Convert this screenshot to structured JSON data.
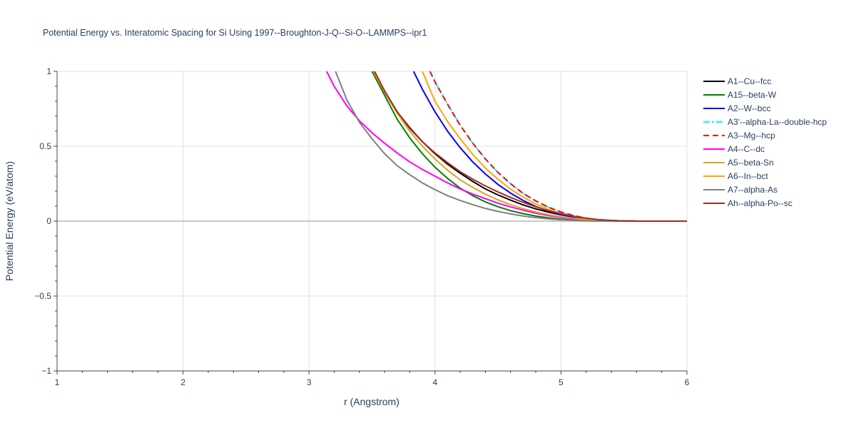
{
  "chart_data": {
    "type": "line",
    "title": "Potential Energy vs. Interatomic Spacing for Si Using 1997--Broughton-J-Q--Si-O--LAMMPS--ipr1",
    "xlabel": "r (Angstrom)",
    "ylabel": "Potential Energy (eV/atom)",
    "xlim": [
      1,
      6
    ],
    "ylim": [
      -1,
      1
    ],
    "xticks": [
      1,
      2,
      3,
      4,
      5,
      6
    ],
    "yticks": [
      -1,
      -0.5,
      0,
      0.5,
      1
    ],
    "xtick_labels": [
      "1",
      "2",
      "3",
      "4",
      "5",
      "6"
    ],
    "ytick_labels": [
      "−1",
      "−0.5",
      "0",
      "0.5",
      "1"
    ],
    "grid": true,
    "legend_position": "right",
    "series": [
      {
        "name": "A1--Cu--fcc",
        "color": "#000000",
        "dash": "solid",
        "x": [
          3.51,
          3.6,
          3.7,
          3.8,
          3.9,
          4.0,
          4.1,
          4.2,
          4.3,
          4.4,
          4.5,
          4.6,
          4.7,
          4.8,
          4.9,
          5.0,
          5.1,
          5.2,
          5.3,
          5.4,
          5.5,
          5.6,
          5.8,
          6.0
        ],
        "y": [
          1.0,
          0.86,
          0.73,
          0.62,
          0.53,
          0.45,
          0.38,
          0.32,
          0.265,
          0.215,
          0.175,
          0.14,
          0.108,
          0.082,
          0.06,
          0.042,
          0.028,
          0.017,
          0.009,
          0.004,
          0.0015,
          0.0003,
          0.0,
          0.0
        ]
      },
      {
        "name": "A15--beta-W",
        "color": "#008000",
        "dash": "solid",
        "x": [
          3.5,
          3.6,
          3.7,
          3.8,
          3.9,
          4.0,
          4.1,
          4.2,
          4.3,
          4.4,
          4.5,
          4.6,
          4.7,
          4.8,
          4.9,
          5.0,
          5.1,
          5.2,
          5.3,
          5.4,
          5.5,
          5.6,
          5.8,
          6.0
        ],
        "y": [
          1.0,
          0.84,
          0.68,
          0.555,
          0.45,
          0.36,
          0.285,
          0.22,
          0.17,
          0.128,
          0.096,
          0.07,
          0.05,
          0.034,
          0.022,
          0.013,
          0.007,
          0.003,
          0.001,
          0.0003,
          0.0,
          0.0,
          0.0,
          0.0
        ]
      },
      {
        "name": "A2--W--bcc",
        "color": "#0000ff",
        "dash": "solid",
        "x": [
          3.83,
          3.9,
          4.0,
          4.1,
          4.2,
          4.3,
          4.4,
          4.5,
          4.6,
          4.7,
          4.8,
          4.9,
          5.0,
          5.1,
          5.2,
          5.3,
          5.4,
          5.5,
          5.6,
          5.8,
          6.0
        ],
        "y": [
          1.0,
          0.88,
          0.73,
          0.6,
          0.49,
          0.395,
          0.315,
          0.245,
          0.187,
          0.138,
          0.098,
          0.067,
          0.043,
          0.026,
          0.014,
          0.007,
          0.003,
          0.001,
          0.0002,
          0.0,
          0.0
        ]
      },
      {
        "name": "A3'--alpha-La--double-hcp",
        "color": "#00ffff",
        "dash": "dashdot",
        "x": [
          3.96,
          4.0,
          4.1,
          4.2,
          4.3,
          4.4,
          4.5,
          4.6,
          4.7,
          4.8,
          4.9,
          5.0,
          5.1,
          5.2,
          5.3,
          5.4,
          5.5,
          5.6,
          5.8,
          6.0
        ],
        "y": [
          1.0,
          0.93,
          0.78,
          0.64,
          0.52,
          0.415,
          0.325,
          0.25,
          0.185,
          0.135,
          0.093,
          0.061,
          0.037,
          0.02,
          0.009,
          0.003,
          0.0008,
          0.0001,
          0.0,
          0.0
        ]
      },
      {
        "name": "A3--Mg--hcp",
        "color": "#ff0000",
        "dash": "dash",
        "x": [
          3.96,
          4.0,
          4.1,
          4.2,
          4.3,
          4.4,
          4.5,
          4.6,
          4.7,
          4.8,
          4.9,
          5.0,
          5.1,
          5.2,
          5.3,
          5.4,
          5.5,
          5.6,
          5.8,
          6.0
        ],
        "y": [
          1.0,
          0.93,
          0.78,
          0.64,
          0.52,
          0.415,
          0.325,
          0.25,
          0.185,
          0.135,
          0.093,
          0.061,
          0.037,
          0.02,
          0.009,
          0.003,
          0.0008,
          0.0001,
          0.0,
          0.0
        ]
      },
      {
        "name": "A4--C--dc",
        "color": "#ff00ff",
        "dash": "solid",
        "x": [
          3.14,
          3.2,
          3.3,
          3.4,
          3.5,
          3.6,
          3.7,
          3.8,
          3.9,
          4.0,
          4.1,
          4.2,
          4.3,
          4.4,
          4.5,
          4.6,
          4.7,
          4.8,
          4.9,
          5.0,
          5.1,
          5.2,
          5.3,
          5.4,
          5.5,
          5.6,
          5.8,
          6.0
        ],
        "y": [
          1.0,
          0.9,
          0.77,
          0.67,
          0.59,
          0.52,
          0.455,
          0.395,
          0.345,
          0.3,
          0.255,
          0.215,
          0.18,
          0.15,
          0.12,
          0.095,
          0.073,
          0.053,
          0.037,
          0.025,
          0.015,
          0.008,
          0.004,
          0.0015,
          0.0004,
          0.0,
          0.0,
          0.0
        ]
      },
      {
        "name": "A5--beta-Sn",
        "color": "#daa520",
        "dash": "solid",
        "x": [
          3.51,
          3.6,
          3.7,
          3.8,
          3.9,
          4.0,
          4.1,
          4.2,
          4.3,
          4.4,
          4.5,
          4.6,
          4.7,
          4.8,
          4.9,
          5.0,
          5.1,
          5.2,
          5.3,
          5.4,
          5.5,
          5.6,
          5.8,
          6.0
        ],
        "y": [
          1.0,
          0.86,
          0.72,
          0.6,
          0.5,
          0.415,
          0.34,
          0.275,
          0.225,
          0.18,
          0.142,
          0.11,
          0.083,
          0.061,
          0.043,
          0.029,
          0.018,
          0.01,
          0.005,
          0.002,
          0.0005,
          0.0,
          0.0,
          0.0
        ]
      },
      {
        "name": "A6--In--bct",
        "color": "#ffa500",
        "dash": "solid",
        "x": [
          3.9,
          4.0,
          4.1,
          4.2,
          4.3,
          4.4,
          4.5,
          4.6,
          4.7,
          4.8,
          4.9,
          5.0,
          5.1,
          5.2,
          5.3,
          5.4,
          5.5,
          5.6,
          5.8,
          6.0
        ],
        "y": [
          1.0,
          0.8,
          0.665,
          0.55,
          0.445,
          0.355,
          0.28,
          0.213,
          0.16,
          0.115,
          0.079,
          0.051,
          0.031,
          0.017,
          0.008,
          0.003,
          0.0008,
          0.0001,
          0.0,
          0.0
        ]
      },
      {
        "name": "A7--alpha-As",
        "color": "#808080",
        "dash": "solid",
        "x": [
          3.21,
          3.3,
          3.4,
          3.5,
          3.6,
          3.7,
          3.8,
          3.9,
          4.0,
          4.1,
          4.2,
          4.3,
          4.4,
          4.5,
          4.6,
          4.7,
          4.8,
          4.9,
          5.0,
          5.1,
          5.2,
          5.3,
          5.4,
          5.5,
          5.6,
          5.8,
          6.0
        ],
        "y": [
          1.0,
          0.81,
          0.66,
          0.55,
          0.45,
          0.37,
          0.31,
          0.255,
          0.21,
          0.17,
          0.138,
          0.11,
          0.085,
          0.065,
          0.048,
          0.034,
          0.023,
          0.015,
          0.009,
          0.005,
          0.002,
          0.0008,
          0.0002,
          0.0,
          0.0,
          0.0,
          0.0
        ]
      },
      {
        "name": "Ah--alpha-Po--sc",
        "color": "#a52a2a",
        "dash": "solid",
        "x": [
          3.52,
          3.6,
          3.7,
          3.8,
          3.9,
          4.0,
          4.1,
          4.2,
          4.3,
          4.4,
          4.5,
          4.6,
          4.7,
          4.8,
          4.9,
          5.0,
          5.1,
          5.2,
          5.3,
          5.4,
          5.5,
          5.6,
          5.8,
          6.0
        ],
        "y": [
          1.0,
          0.87,
          0.73,
          0.625,
          0.53,
          0.455,
          0.39,
          0.33,
          0.28,
          0.235,
          0.195,
          0.158,
          0.125,
          0.096,
          0.07,
          0.049,
          0.032,
          0.019,
          0.01,
          0.0045,
          0.0015,
          0.0003,
          0.0,
          0.0
        ]
      }
    ]
  }
}
